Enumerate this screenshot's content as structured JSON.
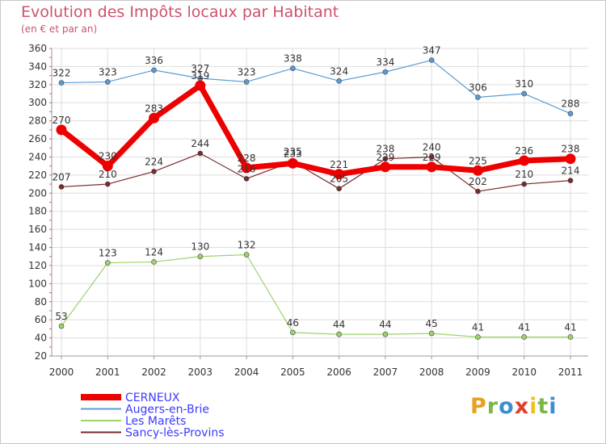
{
  "title": "Evolution des Impôts locaux par Habitant",
  "subtitle": "(en € et par an)",
  "logo": {
    "letters": [
      {
        "ch": "P",
        "color": "#e8a020"
      },
      {
        "ch": "r",
        "color": "#7ab648"
      },
      {
        "ch": "o",
        "color": "#3a8fd0"
      },
      {
        "ch": "x",
        "color": "#e0402a"
      },
      {
        "ch": "i",
        "color": "#f0c020"
      },
      {
        "ch": "t",
        "color": "#7ab648"
      },
      {
        "ch": "i",
        "color": "#3a8fd0"
      }
    ]
  },
  "chart_data": {
    "type": "line",
    "title": "Evolution des Impôts locaux par Habitant",
    "subtitle": "(en € et par an)",
    "xlabel": "",
    "ylabel": "",
    "x": [
      "2000",
      "2001",
      "2002",
      "2003",
      "2004",
      "2005",
      "2006",
      "2007",
      "2008",
      "2009",
      "2010",
      "2011"
    ],
    "ylim": [
      20,
      360
    ],
    "yticks": [
      20,
      40,
      60,
      80,
      100,
      120,
      140,
      160,
      180,
      200,
      220,
      240,
      260,
      280,
      300,
      320,
      340,
      360
    ],
    "grid": true,
    "legend_position": "bottom-left",
    "series": [
      {
        "name": "Augers-en-Brie",
        "color": "#5b9bd5",
        "width": 1.2,
        "values": [
          322,
          323,
          336,
          327,
          323,
          338,
          324,
          334,
          347,
          306,
          310,
          288
        ],
        "labels": [
          "322",
          "323",
          "336",
          "327",
          "323",
          "338",
          "324",
          "334",
          "347",
          "306",
          "310",
          "288"
        ]
      },
      {
        "name": "Les Marêts",
        "color": "#9cd36a",
        "width": 1.2,
        "values": [
          53,
          123,
          124,
          130,
          132,
          46,
          44,
          44,
          45,
          41,
          41,
          41
        ],
        "labels": [
          "53",
          "123",
          "124",
          "130",
          "132",
          "46",
          "44",
          "44",
          "45",
          "41",
          "41",
          "41"
        ]
      },
      {
        "name": "Sancy-lès-Provins",
        "color": "#7a2a2a",
        "width": 1.2,
        "values": [
          207,
          210,
          224,
          244,
          216,
          235,
          205,
          238,
          240,
          202,
          210,
          214
        ],
        "labels": [
          "207",
          "210",
          "224",
          "244",
          "216",
          "235",
          "205",
          "238",
          "240",
          "202",
          "210",
          "214"
        ]
      },
      {
        "name": "CERNEUX",
        "color": "#ee0000",
        "width": 7,
        "values": [
          270,
          230,
          283,
          319,
          228,
          233,
          221,
          229,
          229,
          225,
          236,
          238
        ],
        "labels": [
          "270",
          "230",
          "283",
          "319",
          "228",
          "233",
          "221",
          "229",
          "229",
          "225",
          "236",
          "238"
        ]
      }
    ],
    "legend_order": [
      "CERNEUX",
      "Augers-en-Brie",
      "Les Marêts",
      "Sancy-lès-Provins"
    ]
  }
}
